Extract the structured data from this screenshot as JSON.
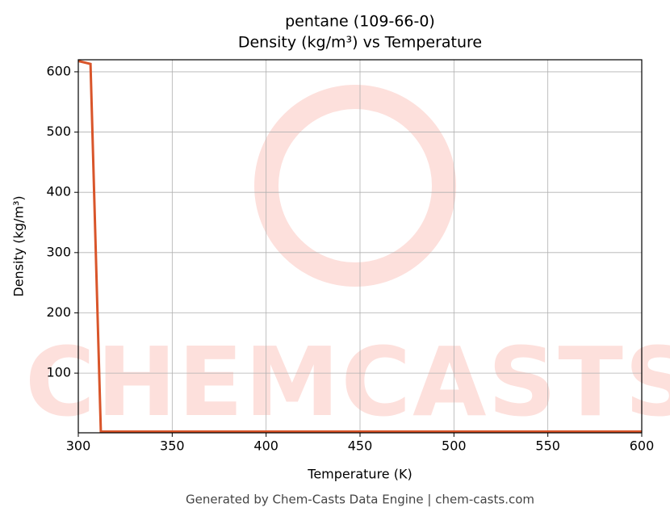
{
  "chart_data": {
    "type": "line",
    "title": "pentane (109-66-0)",
    "subtitle": "Density (kg/m³) vs Temperature",
    "x_label": "Temperature (K)",
    "y_label": "Density (kg/m³)",
    "footer": "Generated by Chem-Casts Data Engine | chem-casts.com",
    "watermark": "CHEMCASTS",
    "x": [
      300,
      306.5,
      312,
      600
    ],
    "series": [
      {
        "name": "Density",
        "color": "#d9552a",
        "values": [
          618,
          613,
          3,
          3
        ]
      }
    ],
    "xlim": [
      300,
      600
    ],
    "xticks": [
      300,
      350,
      400,
      450,
      500,
      550,
      600
    ],
    "ylim": [
      1,
      620
    ],
    "yticks": [
      100,
      200,
      300,
      400,
      500,
      600
    ],
    "grid": true
  }
}
